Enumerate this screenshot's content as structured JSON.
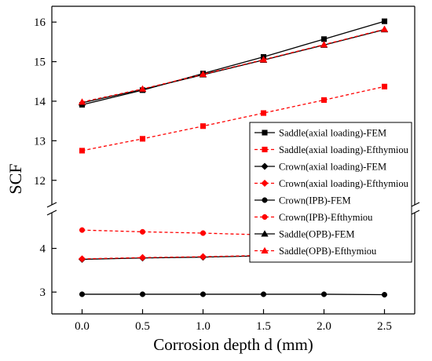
{
  "chart_data": {
    "type": "line",
    "xlabel": "Corrosion depth d (mm)",
    "ylabel": "SCF",
    "x": [
      0.0,
      0.5,
      1.0,
      1.5,
      2.0,
      2.5
    ],
    "xlim": [
      -0.25,
      2.75
    ],
    "x_ticks": [
      0.0,
      0.5,
      1.0,
      1.5,
      2.0,
      2.5
    ],
    "x_tick_labels": [
      "0.0",
      "0.5",
      "1.0",
      "1.5",
      "2.0",
      "2.5"
    ],
    "y_axis_break": true,
    "ylim_lower": [
      2.5,
      4.8
    ],
    "ylim_upper": [
      11.4,
      16.4
    ],
    "y_ticks": [
      3,
      4,
      12,
      13,
      14,
      15,
      16
    ],
    "y_tick_labels": [
      "3",
      "4",
      "12",
      "13",
      "14",
      "15",
      "16"
    ],
    "grid": false,
    "legend_position": "right-middle",
    "series": [
      {
        "name": "Saddle(axial loading)-FEM",
        "color": "#000000",
        "line": "solid",
        "marker": "square",
        "values": [
          13.91,
          14.28,
          14.7,
          15.12,
          15.57,
          16.02
        ]
      },
      {
        "name": "Saddle(axial loading)-Efthymiou",
        "color": "#ff0000",
        "line": "dashed",
        "marker": "square",
        "values": [
          12.75,
          13.05,
          13.37,
          13.7,
          14.03,
          14.37
        ]
      },
      {
        "name": "Crown(axial loading)-FEM",
        "color": "#000000",
        "line": "solid",
        "marker": "diamond",
        "values": [
          3.75,
          3.78,
          3.8,
          3.83,
          3.85,
          3.87
        ]
      },
      {
        "name": "Crown(axial loading)-Efthymiou",
        "color": "#ff0000",
        "line": "dashed",
        "marker": "diamond",
        "values": [
          3.76,
          3.79,
          3.81,
          3.84,
          3.86,
          3.88
        ]
      },
      {
        "name": "Crown(IPB)-FEM",
        "color": "#000000",
        "line": "solid",
        "marker": "circle",
        "values": [
          2.95,
          2.95,
          2.95,
          2.95,
          2.95,
          2.94
        ]
      },
      {
        "name": "Crown(IPB)-Efthymiou",
        "color": "#ff0000",
        "line": "dashed",
        "marker": "circle",
        "values": [
          4.42,
          4.38,
          4.35,
          4.31,
          4.26,
          4.21
        ]
      },
      {
        "name": "Saddle(OPB)-FEM",
        "color": "#000000",
        "line": "solid",
        "marker": "triangle",
        "values": [
          13.96,
          14.3,
          14.67,
          15.04,
          15.42,
          15.81
        ]
      },
      {
        "name": "Saddle(OPB)-Efthymiou",
        "color": "#ff0000",
        "line": "dashed",
        "marker": "triangle",
        "values": [
          13.98,
          14.31,
          14.68,
          15.05,
          15.43,
          15.82
        ]
      }
    ]
  }
}
